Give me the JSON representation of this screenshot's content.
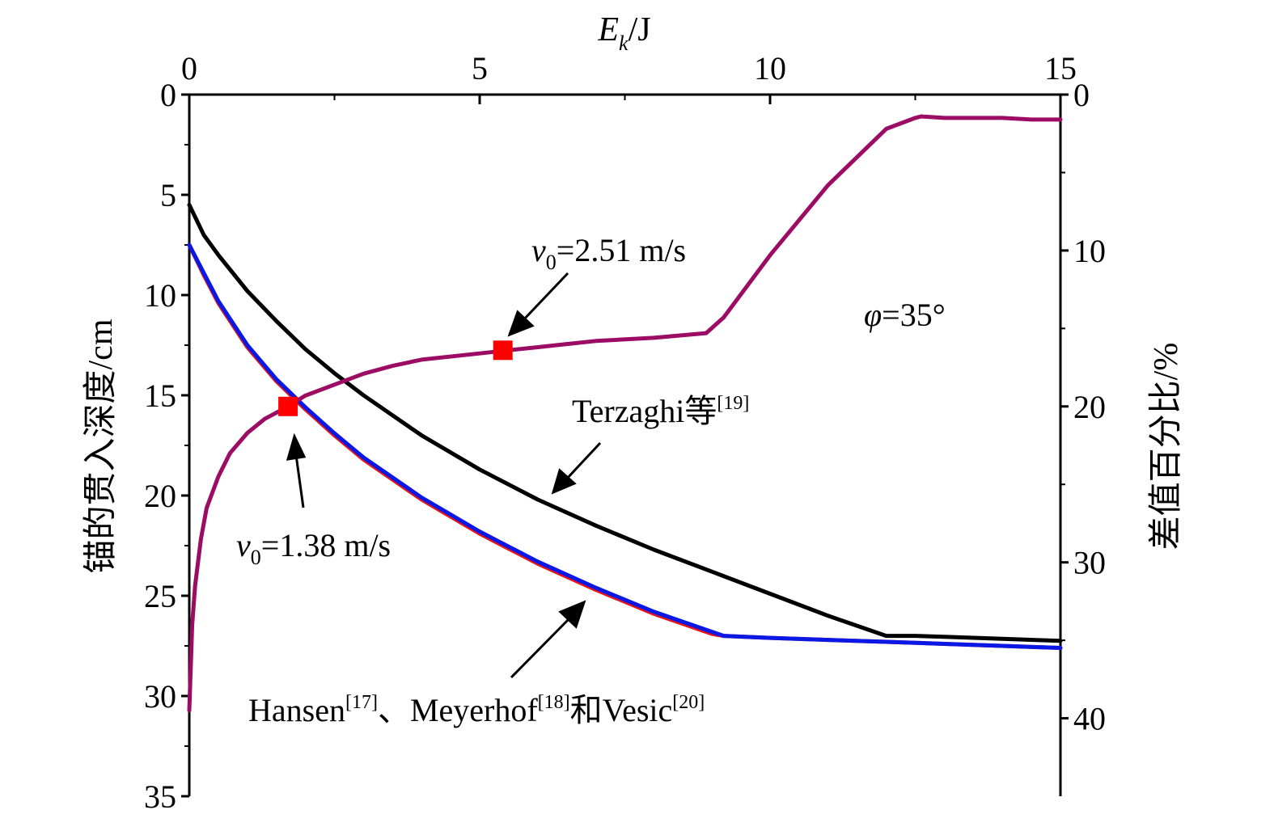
{
  "chart_data": {
    "type": "line",
    "title": "",
    "x_axis": {
      "label_main": "E",
      "label_sub": "k",
      "label_unit": "/J",
      "range": [
        0,
        15
      ],
      "ticks": [
        0,
        5,
        10,
        15
      ],
      "tick_labels": [
        "0",
        "5",
        "10",
        "15"
      ]
    },
    "y_left": {
      "label": "锚的贯入深度/cm",
      "range": [
        0,
        35
      ],
      "inverted": true,
      "ticks": [
        0,
        5,
        10,
        15,
        20,
        25,
        30,
        35
      ],
      "tick_labels": [
        "0",
        "5",
        "10",
        "15",
        "20",
        "25",
        "30",
        "35"
      ]
    },
    "y_right": {
      "label": "差值百分比/%",
      "range": [
        0,
        45
      ],
      "inverted": true,
      "ticks": [
        0,
        10,
        20,
        30,
        40
      ],
      "tick_labels": [
        "0",
        "10",
        "20",
        "30",
        "40"
      ]
    },
    "grid": false,
    "series": [
      {
        "key": "terzaghi",
        "axis": "left",
        "color": "#000000",
        "x": [
          0,
          0.25,
          0.5,
          1,
          1.5,
          2,
          2.5,
          3,
          4,
          5,
          6,
          7,
          8,
          9,
          10,
          11,
          12,
          12.5,
          13,
          14,
          15
        ],
        "y": [
          5.5,
          7.0,
          8.0,
          9.8,
          11.3,
          12.7,
          13.9,
          15.0,
          17.0,
          18.7,
          20.2,
          21.5,
          22.7,
          23.8,
          24.9,
          26.0,
          27.0,
          27.0,
          27.05,
          27.15,
          27.25
        ]
      },
      {
        "key": "hansen_red",
        "axis": "left",
        "color": "#e8141c",
        "x": [
          0,
          0.25,
          0.5,
          1,
          1.5,
          2,
          2.5,
          3,
          4,
          5,
          6,
          7,
          8,
          9,
          9.2,
          10,
          11,
          12,
          13,
          14,
          15
        ],
        "y": [
          7.5,
          9.0,
          10.4,
          12.6,
          14.3,
          15.7,
          17.0,
          18.2,
          20.2,
          21.9,
          23.4,
          24.7,
          25.9,
          26.9,
          27.0,
          27.1,
          27.2,
          27.3,
          27.4,
          27.5,
          27.6
        ]
      },
      {
        "key": "hansen_blue",
        "axis": "left",
        "color": "#0a18e6",
        "x": [
          0,
          0.25,
          0.5,
          1,
          1.5,
          2,
          2.5,
          3,
          4,
          5,
          6,
          7,
          8,
          9,
          9.2,
          10,
          11,
          12,
          13,
          14,
          15
        ],
        "y": [
          7.5,
          8.9,
          10.3,
          12.5,
          14.2,
          15.6,
          16.9,
          18.1,
          20.1,
          21.8,
          23.3,
          24.6,
          25.8,
          26.8,
          27.0,
          27.1,
          27.2,
          27.3,
          27.4,
          27.5,
          27.6
        ]
      },
      {
        "key": "percent_diff",
        "axis": "right",
        "color": "#9c0c64",
        "x": [
          0,
          0.05,
          0.1,
          0.2,
          0.3,
          0.5,
          0.7,
          1.0,
          1.3,
          1.7,
          2.0,
          2.5,
          3.0,
          3.5,
          4.0,
          5.0,
          5.5,
          6.0,
          6.5,
          7.0,
          8.0,
          8.9,
          9.2,
          10.0,
          11.0,
          12.0,
          12.5,
          12.6,
          13.0,
          14.0,
          14.5,
          15.0
        ],
        "y": [
          39.5,
          34.0,
          31.5,
          28.5,
          26.5,
          24.5,
          23.0,
          21.7,
          20.8,
          20.0,
          19.3,
          18.6,
          17.9,
          17.4,
          17.0,
          16.6,
          16.4,
          16.2,
          16.0,
          15.8,
          15.6,
          15.3,
          14.3,
          10.3,
          5.8,
          2.2,
          1.5,
          1.4,
          1.5,
          1.5,
          1.6,
          1.6
        ]
      }
    ],
    "markers": [
      {
        "key": "marker_v138",
        "axis": "right",
        "x": 1.7,
        "y": 20.0,
        "color": "#ff0000"
      },
      {
        "key": "marker_v251",
        "axis": "right",
        "x": 5.4,
        "y": 16.4,
        "color": "#ff0000"
      }
    ],
    "annotations": {
      "v251_var": "v",
      "v251_sub": "0",
      "v251_rest": "=2.51 m/s",
      "v138_var": "v",
      "v138_sub": "0",
      "v138_rest": "=1.38 m/s",
      "phi_var": "φ",
      "phi_rest": "=35°",
      "terzaghi_text": "Terzaghi等",
      "terzaghi_ref": "[19]",
      "hansen_text": "Hansen",
      "hansen_ref": "[17]",
      "sep": "、",
      "meyerhof_text": "Meyerhof",
      "meyerhof_ref": "[18]",
      "he": "和",
      "vesic_text": "Vesic",
      "vesic_ref": "[20]"
    }
  }
}
